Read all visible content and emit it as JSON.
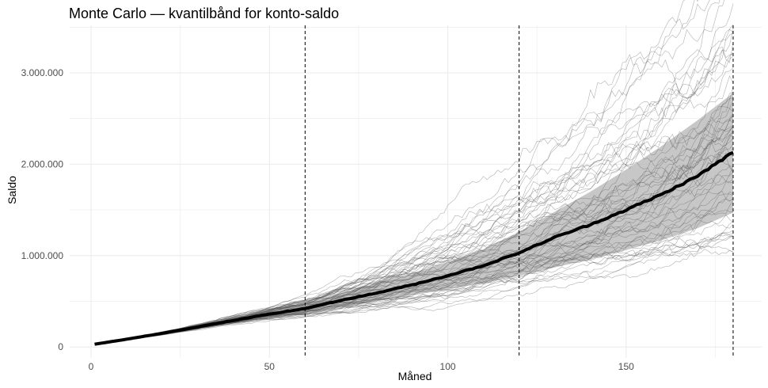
{
  "chart_data": {
    "type": "line",
    "title": "Monte Carlo — kvantilbånd for konto-saldo",
    "xlabel": "Måned",
    "ylabel": "Saldo",
    "xlim": [
      -6,
      188
    ],
    "ylim": [
      -120000,
      3520000
    ],
    "x_ticks": [
      0,
      50,
      100,
      150
    ],
    "x_tick_labels": [
      "0",
      "50",
      "100",
      "150"
    ],
    "y_ticks": [
      0,
      1000000,
      2000000,
      3000000
    ],
    "y_tick_labels": [
      "0",
      "1.000.000",
      "2.000.000",
      "3.000.000"
    ],
    "grid": true,
    "vlines": [
      60,
      120,
      180
    ],
    "colors": {
      "band": "#bdbdbd",
      "paths": "#555555",
      "median": "#000000",
      "grid": "#ebebeb"
    },
    "n_paths": 60,
    "median": {
      "x": [
        1,
        10,
        20,
        30,
        40,
        50,
        60,
        70,
        80,
        90,
        100,
        110,
        120,
        130,
        140,
        150,
        160,
        170,
        180
      ],
      "y": [
        30000,
        85000,
        150000,
        220000,
        290000,
        360000,
        420000,
        510000,
        590000,
        680000,
        780000,
        890000,
        1030000,
        1200000,
        1340000,
        1500000,
        1670000,
        1870000,
        2130000
      ]
    },
    "band": {
      "x": [
        1,
        10,
        20,
        30,
        40,
        50,
        60,
        70,
        80,
        90,
        100,
        110,
        120,
        130,
        140,
        150,
        160,
        170,
        180
      ],
      "lower": [
        28000,
        78000,
        138000,
        200000,
        260000,
        315000,
        360000,
        435000,
        500000,
        565000,
        630000,
        700000,
        780000,
        870000,
        960000,
        1060000,
        1170000,
        1300000,
        1470000
      ],
      "upper": [
        32000,
        92000,
        162000,
        240000,
        320000,
        405000,
        480000,
        590000,
        700000,
        810000,
        930000,
        1070000,
        1260000,
        1480000,
        1700000,
        1940000,
        2200000,
        2480000,
        2780000
      ]
    }
  }
}
